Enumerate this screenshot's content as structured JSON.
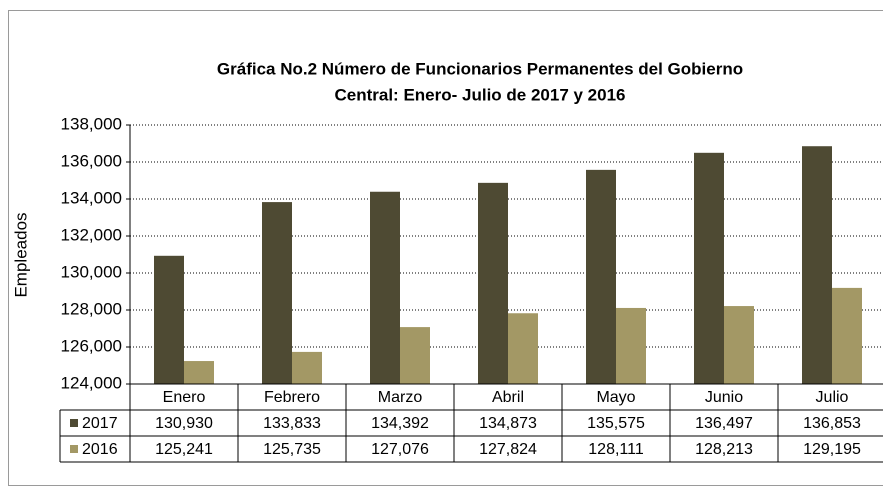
{
  "chart_data": {
    "type": "bar",
    "title": [
      "Gráfica No.2 Número de Funcionarios Permanentes del Gobierno",
      "Central: Enero- Julio de 2017 y 2016"
    ],
    "ylabel": "Empleados",
    "categories": [
      "Enero",
      "Febrero",
      "Marzo",
      "Abril",
      "Mayo",
      "Junio",
      "Julio"
    ],
    "series": [
      {
        "name": "2017",
        "color": "#4e4a33",
        "values": [
          130930,
          133833,
          134392,
          134873,
          135575,
          136497,
          136853
        ],
        "value_labels": [
          "130,930",
          "133,833",
          "134,392",
          "134,873",
          "135,575",
          "136,497",
          "136,853"
        ]
      },
      {
        "name": "2016",
        "color": "#a39865",
        "values": [
          125241,
          125735,
          127076,
          127824,
          128111,
          128213,
          129195
        ],
        "value_labels": [
          "125,241",
          "125,735",
          "127,076",
          "127,824",
          "128,111",
          "128,213",
          "129,195"
        ]
      }
    ],
    "ylim": [
      124000,
      138000
    ],
    "yticks": [
      {
        "value": 124000,
        "label": "124,000"
      },
      {
        "value": 126000,
        "label": "126,000"
      },
      {
        "value": 128000,
        "label": "128,000"
      },
      {
        "value": 130000,
        "label": "130,000"
      },
      {
        "value": 132000,
        "label": "132,000"
      },
      {
        "value": 134000,
        "label": "134,000"
      },
      {
        "value": 136000,
        "label": "136,000"
      },
      {
        "value": 138000,
        "label": "138,000"
      }
    ],
    "grid": true
  }
}
